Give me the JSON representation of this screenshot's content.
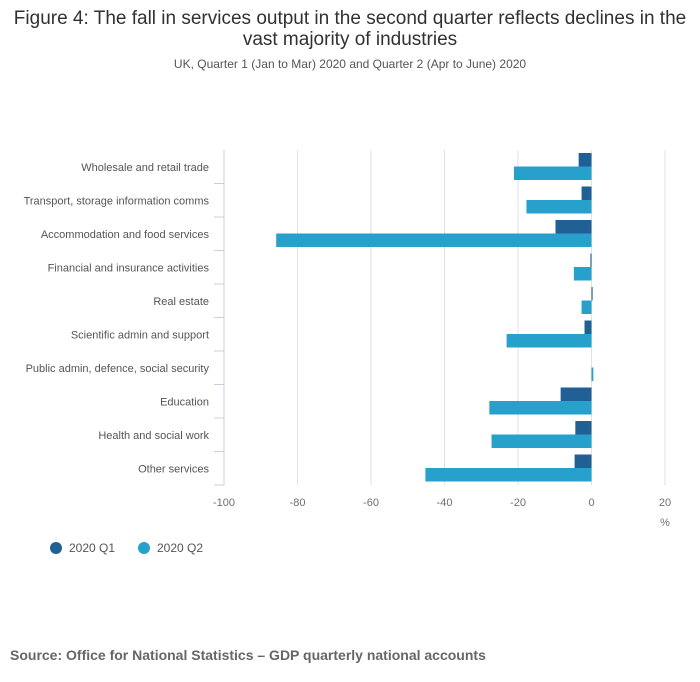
{
  "title": "Figure 4: The fall in services output in the second quarter reflects declines in the vast majority of industries",
  "subtitle": "UK, Quarter 1 (Jan to Mar) 2020 and Quarter 2 (Apr to June) 2020",
  "source": "Source: Office for National Statistics – GDP quarterly national accounts",
  "chart_data": {
    "type": "bar",
    "orientation": "horizontal",
    "categories": [
      "Wholesale and retail trade",
      "Transport, storage information comms",
      "Accommodation and food services",
      "Financial and insurance activities",
      "Real estate",
      "Scientific admin and support",
      "Public admin, defence, social security",
      "Education",
      "Health and social work",
      "Other services"
    ],
    "series": [
      {
        "name": "2020 Q1",
        "color": "#206095",
        "values": [
          -3.5,
          -2.7,
          -9.8,
          -0.3,
          0.3,
          -1.9,
          0,
          -8.4,
          -4.4,
          -4.6
        ]
      },
      {
        "name": "2020 Q2",
        "color": "#27a0cc",
        "values": [
          -21.1,
          -17.7,
          -85.8,
          -4.8,
          -2.7,
          -23.1,
          0.5,
          -27.8,
          -27.2,
          -45.2
        ]
      }
    ],
    "xlim": [
      -100,
      20
    ],
    "xticks": [
      "-100",
      "-80",
      "-60",
      "-40",
      "-20",
      "0",
      "20"
    ],
    "xlabel": "%",
    "grid": true,
    "legend": "bottom-left"
  }
}
